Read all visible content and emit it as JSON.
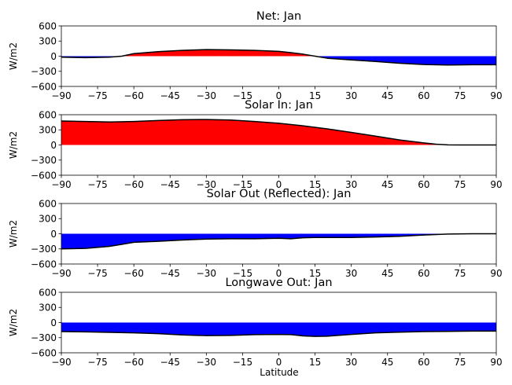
{
  "figure": {
    "xlabel": "Latitude",
    "ylabel": "W/m2"
  },
  "chart_data": [
    {
      "type": "area",
      "title": "Net: Jan",
      "ylabel": "W/m2",
      "xlim": [
        -90,
        90
      ],
      "ylim": [
        -600,
        600
      ],
      "xticks": [
        -90,
        -75,
        -60,
        -45,
        -30,
        -15,
        0,
        15,
        30,
        45,
        60,
        75,
        90
      ],
      "yticks": [
        600,
        300,
        0,
        -300,
        -600
      ],
      "fill_positive_color": "#ff0000",
      "fill_negative_color": "#0000ff",
      "line_color": "#000000",
      "x": [
        -90,
        -80,
        -70,
        -65,
        -60,
        -50,
        -40,
        -30,
        -20,
        -10,
        0,
        5,
        10,
        15,
        20,
        30,
        40,
        50,
        60,
        70,
        80,
        90
      ],
      "y": [
        -20,
        -30,
        -20,
        0,
        50,
        90,
        115,
        130,
        125,
        115,
        95,
        70,
        40,
        0,
        -40,
        -75,
        -105,
        -140,
        -165,
        -175,
        -170,
        -170
      ]
    },
    {
      "type": "area",
      "title": "Solar In: Jan",
      "ylabel": "W/m2",
      "xlim": [
        -90,
        90
      ],
      "ylim": [
        -600,
        600
      ],
      "xticks": [
        -90,
        -75,
        -60,
        -45,
        -30,
        -15,
        0,
        15,
        30,
        45,
        60,
        75,
        90
      ],
      "yticks": [
        600,
        300,
        0,
        -300,
        -600
      ],
      "fill_positive_color": "#ff0000",
      "fill_negative_color": "#0000ff",
      "line_color": "#000000",
      "x": [
        -90,
        -80,
        -70,
        -60,
        -50,
        -40,
        -30,
        -20,
        -10,
        0,
        10,
        20,
        30,
        40,
        50,
        60,
        65,
        70,
        75,
        80,
        90
      ],
      "y": [
        475,
        465,
        455,
        465,
        485,
        500,
        505,
        495,
        465,
        430,
        380,
        320,
        250,
        175,
        100,
        40,
        15,
        2,
        0,
        0,
        0
      ]
    },
    {
      "type": "area",
      "title": "Solar Out (Reflected): Jan",
      "ylabel": "W/m2",
      "xlim": [
        -90,
        90
      ],
      "ylim": [
        -600,
        600
      ],
      "xticks": [
        -90,
        -75,
        -60,
        -45,
        -30,
        -15,
        0,
        15,
        30,
        45,
        60,
        75,
        90
      ],
      "yticks": [
        600,
        300,
        0,
        -300,
        -600
      ],
      "fill_positive_color": "#ff0000",
      "fill_negative_color": "#0000ff",
      "line_color": "#000000",
      "x": [
        -90,
        -80,
        -70,
        -65,
        -60,
        -50,
        -40,
        -30,
        -20,
        -10,
        0,
        5,
        10,
        15,
        20,
        30,
        40,
        50,
        60,
        70,
        80,
        90
      ],
      "y": [
        -300,
        -290,
        -250,
        -210,
        -170,
        -150,
        -125,
        -105,
        -100,
        -100,
        -90,
        -100,
        -80,
        -75,
        -75,
        -75,
        -65,
        -50,
        -25,
        -5,
        0,
        0
      ]
    },
    {
      "type": "area",
      "title": "Longwave Out: Jan",
      "ylabel": "W/m2",
      "xlabel": "Latitude",
      "xlim": [
        -90,
        90
      ],
      "ylim": [
        -600,
        600
      ],
      "xticks": [
        -90,
        -75,
        -60,
        -45,
        -30,
        -15,
        0,
        15,
        30,
        45,
        60,
        75,
        90
      ],
      "yticks": [
        600,
        300,
        0,
        -300,
        -600
      ],
      "fill_positive_color": "#ff0000",
      "fill_negative_color": "#0000ff",
      "line_color": "#000000",
      "x": [
        -90,
        -80,
        -70,
        -60,
        -50,
        -40,
        -30,
        -20,
        -10,
        0,
        5,
        10,
        15,
        20,
        30,
        40,
        50,
        60,
        70,
        80,
        90
      ],
      "y": [
        -180,
        -185,
        -195,
        -205,
        -220,
        -245,
        -260,
        -255,
        -240,
        -235,
        -240,
        -265,
        -275,
        -270,
        -235,
        -205,
        -190,
        -180,
        -175,
        -170,
        -170
      ]
    }
  ]
}
